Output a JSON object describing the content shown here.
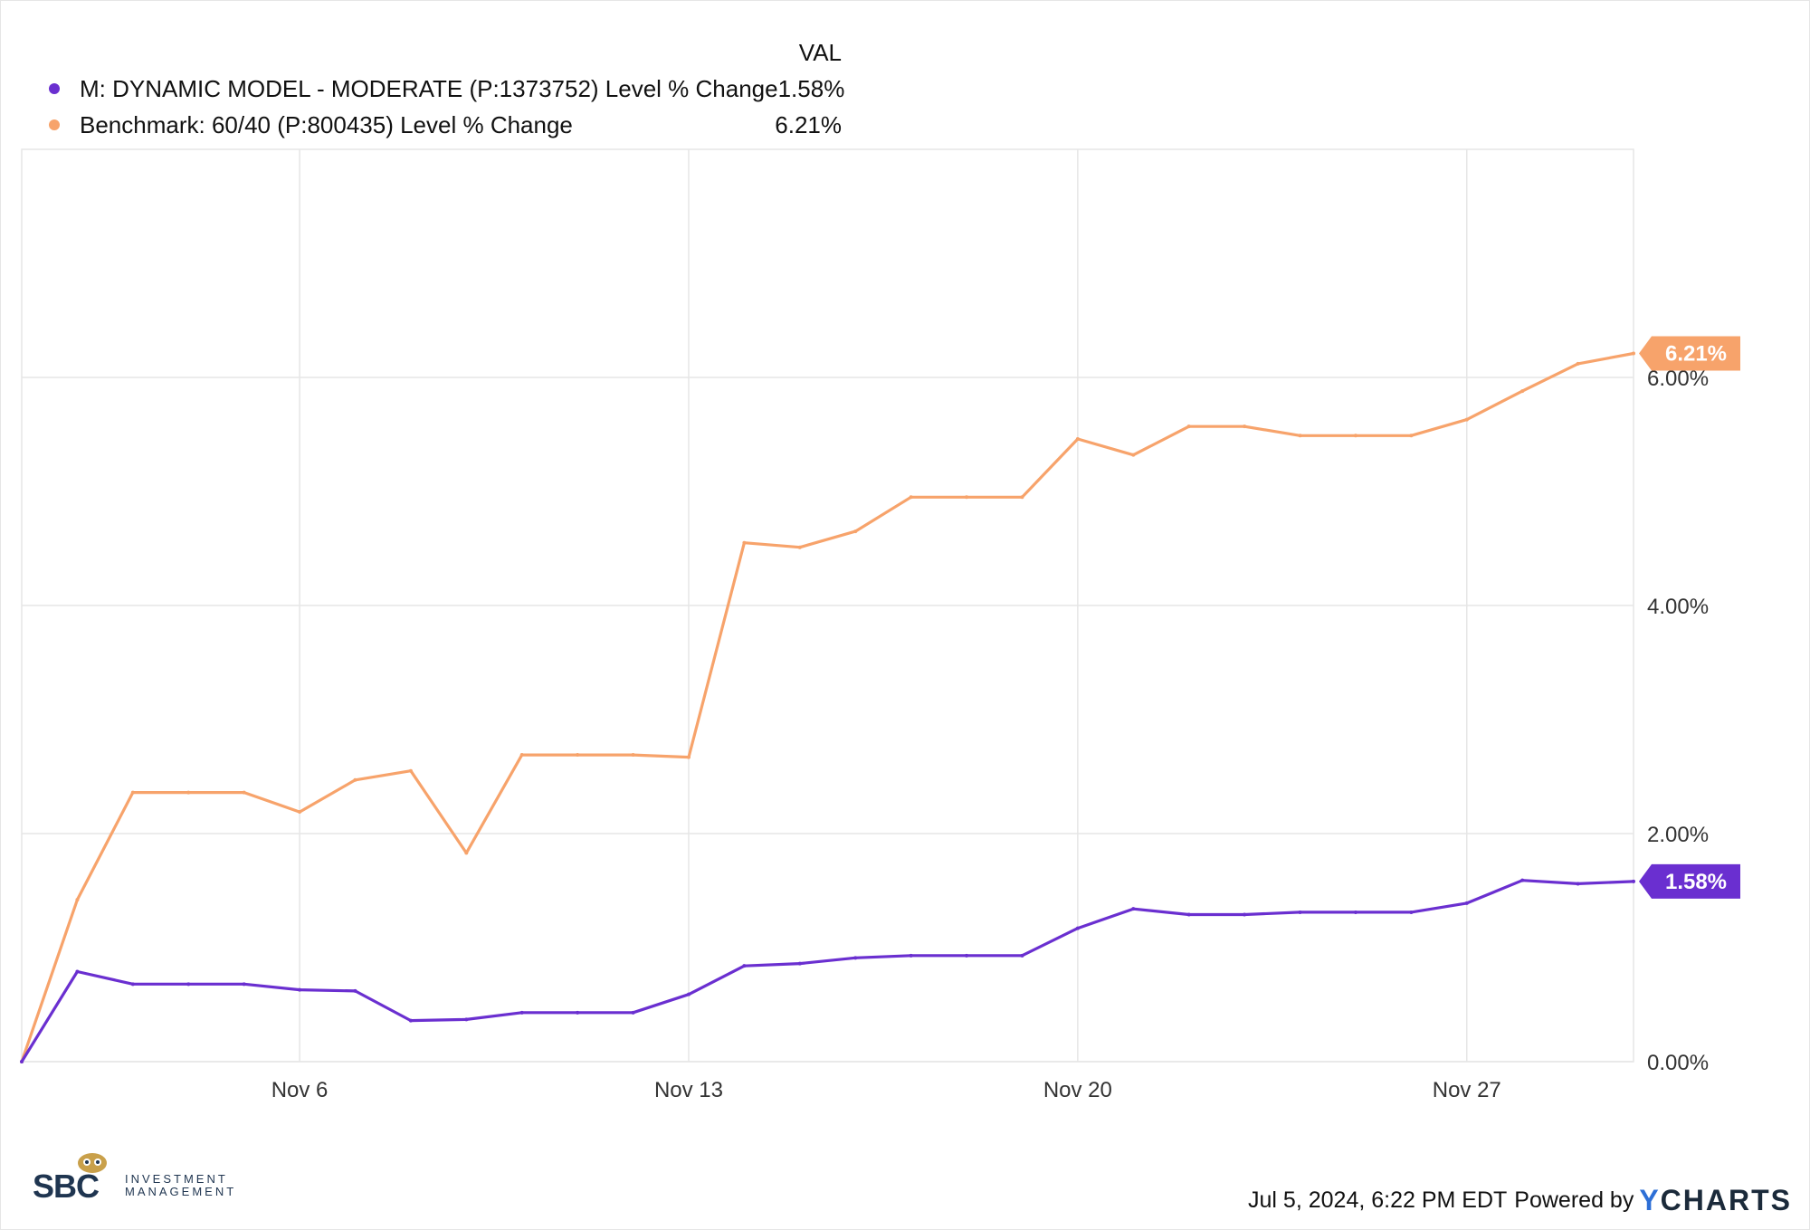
{
  "legend": {
    "header": "VAL",
    "rows": [
      {
        "name": "M: DYNAMIC MODEL - MODERATE (P:1373752) Level % Change",
        "value": "1.58%"
      },
      {
        "name": "Benchmark: 60/40 (P:800435) Level % Change",
        "value": "6.21%"
      }
    ]
  },
  "chart_data": {
    "type": "line",
    "x_tick_labels": [
      "Nov 6",
      "Nov 13",
      "Nov 20",
      "Nov 27"
    ],
    "x_tick_days": [
      6,
      13,
      20,
      27
    ],
    "y_tick_labels": [
      "0.00%",
      "2.00%",
      "4.00%",
      "6.00%"
    ],
    "y_ticks": [
      0,
      2,
      4,
      6
    ],
    "ylim": [
      0,
      8.0
    ],
    "xlim": [
      1,
      30
    ],
    "grid": true,
    "legend_position": "top-left",
    "series": [
      {
        "name": "M: DYNAMIC MODEL - MODERATE (P:1373752) Level % Change",
        "color": "#6a2fd0",
        "end_label": "1.58%",
        "x": [
          1,
          2,
          3,
          4,
          5,
          6,
          7,
          8,
          9,
          10,
          11,
          12,
          13,
          14,
          15,
          16,
          17,
          18,
          19,
          20,
          21,
          22,
          23,
          24,
          25,
          26,
          27,
          28,
          29,
          30
        ],
        "y": [
          0,
          0.79,
          0.68,
          0.68,
          0.68,
          0.63,
          0.62,
          0.36,
          0.37,
          0.43,
          0.43,
          0.43,
          0.59,
          0.84,
          0.86,
          0.91,
          0.93,
          0.93,
          0.93,
          1.17,
          1.34,
          1.29,
          1.29,
          1.31,
          1.31,
          1.31,
          1.39,
          1.59,
          1.56,
          1.58
        ]
      },
      {
        "name": "Benchmark: 60/40 (P:800435) Level % Change",
        "color": "#f7a36b",
        "end_label": "6.21%",
        "x": [
          1,
          2,
          3,
          4,
          5,
          6,
          7,
          8,
          9,
          10,
          11,
          12,
          13,
          14,
          15,
          16,
          17,
          18,
          19,
          20,
          21,
          22,
          23,
          24,
          25,
          26,
          27,
          28,
          29,
          30
        ],
        "y": [
          0,
          1.42,
          2.36,
          2.36,
          2.36,
          2.19,
          2.47,
          2.55,
          1.83,
          2.69,
          2.69,
          2.69,
          2.67,
          4.55,
          4.51,
          4.65,
          4.95,
          4.95,
          4.95,
          5.46,
          5.32,
          5.57,
          5.57,
          5.49,
          5.49,
          5.49,
          5.63,
          5.88,
          6.12,
          6.21
        ]
      }
    ]
  },
  "footer": {
    "timestamp": "Jul 5, 2024, 6:22 PM EDT",
    "powered_by": "Powered by",
    "brand_y": "Y",
    "brand_rest": "CHARTS"
  },
  "logo": {
    "letters": "SBC",
    "line1": "INVESTMENT",
    "line2": "MANAGEMENT"
  },
  "colors": {
    "grid": "#e6e6e6",
    "axis_text": "#333333",
    "logo_navy": "#1f3550",
    "logo_gold": "#c9a04a"
  }
}
